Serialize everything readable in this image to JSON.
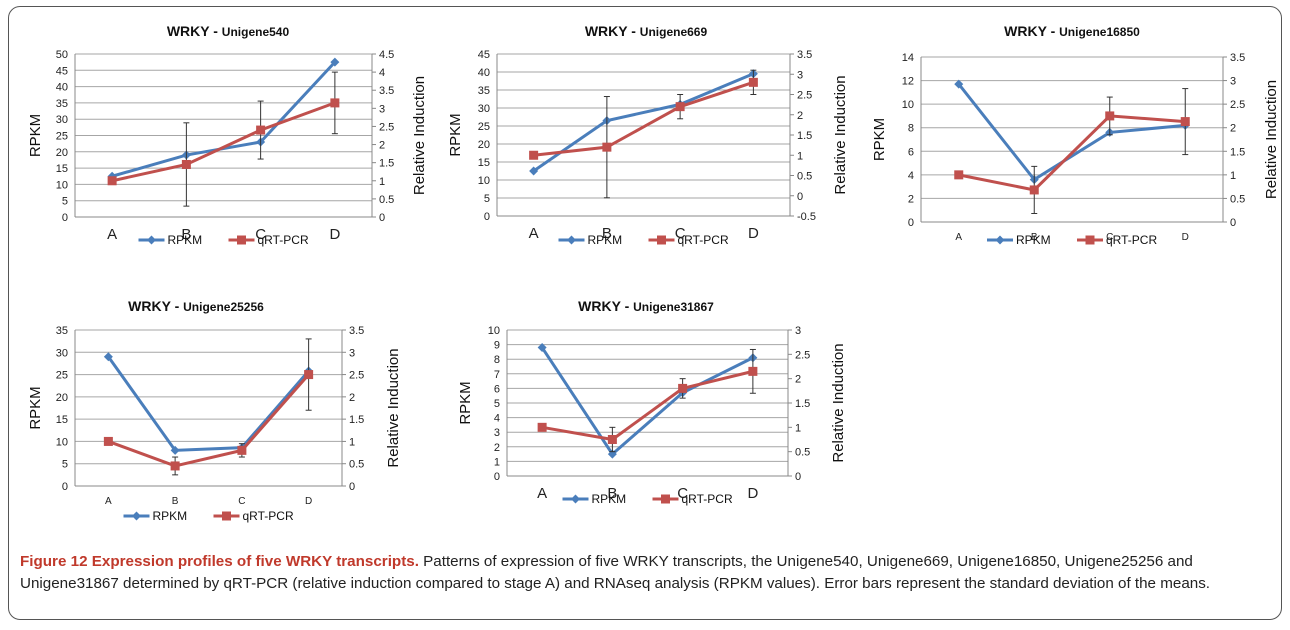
{
  "figure": {
    "caption_label": "Figure 12 Expression profiles of five WRKY transcripts.",
    "caption_text": " Patterns of expression of five WRKY transcripts, the Unigene540, Unigene669, Unigene16850, Unigene25256 and Unigene31867 determined by qRT-PCR (relative induction compared to stage A) and RNAseq analysis (RPKM values). Error bars represent the standard deviation of the means."
  },
  "colors": {
    "rpkm": "#4a7ebb",
    "qrtpcr": "#c0504d",
    "grid": "#a6a6a6",
    "errorbar": "#333333"
  },
  "chart_data": [
    {
      "type": "line",
      "title_prefix": "WRKY - ",
      "title_gene": "Unigene540",
      "categories": [
        "A",
        "B",
        "C",
        "D"
      ],
      "ylabel": "RPKM",
      "y2label": "Relative Induction",
      "ylim": [
        0,
        50
      ],
      "yticks": [
        "0",
        "5",
        "10",
        "15",
        "20",
        "25",
        "30",
        "35",
        "40",
        "45",
        "50"
      ],
      "y2lim": [
        0,
        4.5
      ],
      "y2ticks": [
        "0",
        "0.5",
        "1",
        "1.5",
        "2",
        "2.5",
        "3",
        "3.5",
        "4",
        "4.5"
      ],
      "series": [
        {
          "name": "RPKM",
          "axis": "left",
          "values": [
            12.5,
            19,
            23,
            47.5
          ],
          "error": [
            0,
            0,
            0,
            0
          ]
        },
        {
          "name": "qRT-PCR",
          "axis": "right",
          "values": [
            1,
            1.45,
            2.4,
            3.15
          ],
          "error": [
            0,
            1.15,
            0.8,
            0.85
          ]
        }
      ],
      "legend_position": "bottom"
    },
    {
      "type": "line",
      "title_prefix": "WRKY - ",
      "title_gene": "Unigene669",
      "categories": [
        "A",
        "B",
        "C",
        "D"
      ],
      "ylabel": "RPKM",
      "y2label": "Relative Induction",
      "ylim": [
        0,
        45
      ],
      "yticks": [
        "0",
        "5",
        "10",
        "15",
        "20",
        "25",
        "30",
        "35",
        "40",
        "45"
      ],
      "y2lim": [
        -0.5,
        3.5
      ],
      "y2ticks": [
        "-0.5",
        "0",
        "0.5",
        "1",
        "1.5",
        "2",
        "2.5",
        "3",
        "3.5"
      ],
      "series": [
        {
          "name": "RPKM",
          "axis": "left",
          "values": [
            12.5,
            26.5,
            31,
            39.5
          ],
          "error": [
            0,
            0,
            0,
            0
          ]
        },
        {
          "name": "qRT-PCR",
          "axis": "right",
          "values": [
            1,
            1.2,
            2.2,
            2.8
          ],
          "error": [
            0,
            1.25,
            0.3,
            0.3
          ]
        }
      ],
      "legend_position": "bottom"
    },
    {
      "type": "line",
      "title_prefix": "WRKY - ",
      "title_gene": "Unigene16850",
      "categories": [
        "A",
        "B",
        "C",
        "D"
      ],
      "ylabel": "RPKM",
      "y2label": "Relative Induction",
      "ylim": [
        0,
        14
      ],
      "yticks": [
        "0",
        "2",
        "4",
        "6",
        "8",
        "10",
        "12",
        "14"
      ],
      "y2lim": [
        0,
        3.5
      ],
      "y2ticks": [
        "0",
        "0.5",
        "1",
        "1.5",
        "2",
        "2.5",
        "3",
        "3.5"
      ],
      "series": [
        {
          "name": "RPKM",
          "axis": "left",
          "values": [
            11.7,
            3.6,
            7.6,
            8.2
          ],
          "error": [
            0,
            0,
            0,
            0
          ]
        },
        {
          "name": "qRT-PCR",
          "axis": "right",
          "values": [
            1,
            0.68,
            2.25,
            2.13
          ],
          "error": [
            0,
            0.5,
            0.4,
            0.7
          ]
        }
      ],
      "legend_position": "bottom"
    },
    {
      "type": "line",
      "title_prefix": "WRKY - ",
      "title_gene": "Unigene25256",
      "categories": [
        "A",
        "B",
        "C",
        "D"
      ],
      "ylabel": "RPKM",
      "y2label": "Relative Induction",
      "ylim": [
        0,
        35
      ],
      "yticks": [
        "0",
        "5",
        "10",
        "15",
        "20",
        "25",
        "30",
        "35"
      ],
      "y2lim": [
        0,
        3.5
      ],
      "y2ticks": [
        "0",
        "0.5",
        "1",
        "1.5",
        "2",
        "2.5",
        "3",
        "3.5"
      ],
      "series": [
        {
          "name": "RPKM",
          "axis": "left",
          "values": [
            29,
            8,
            8.6,
            25.8
          ],
          "error": [
            0,
            0,
            0,
            0
          ]
        },
        {
          "name": "qRT-PCR",
          "axis": "right",
          "values": [
            1,
            0.45,
            0.8,
            2.5
          ],
          "error": [
            0,
            0.2,
            0.15,
            0.8
          ]
        }
      ],
      "legend_position": "bottom"
    },
    {
      "type": "line",
      "title_prefix": "WRKY - ",
      "title_gene": "Unigene31867",
      "categories": [
        "A",
        "B",
        "C",
        "D"
      ],
      "ylabel": "RPKM",
      "y2label": "Relative Induction",
      "ylim": [
        0,
        10
      ],
      "yticks": [
        "0",
        "1",
        "2",
        "3",
        "4",
        "5",
        "6",
        "7",
        "8",
        "9",
        "10"
      ],
      "y2lim": [
        0,
        3
      ],
      "y2ticks": [
        "0",
        "0.5",
        "1",
        "1.5",
        "2",
        "2.5",
        "3"
      ],
      "series": [
        {
          "name": "RPKM",
          "axis": "left",
          "values": [
            8.8,
            1.5,
            5.7,
            8.1
          ],
          "error": [
            0,
            0,
            0,
            0
          ]
        },
        {
          "name": "qRT-PCR",
          "axis": "right",
          "values": [
            1,
            0.75,
            1.8,
            2.15
          ],
          "error": [
            0,
            0.25,
            0.2,
            0.45
          ]
        }
      ],
      "legend_position": "bottom"
    }
  ]
}
